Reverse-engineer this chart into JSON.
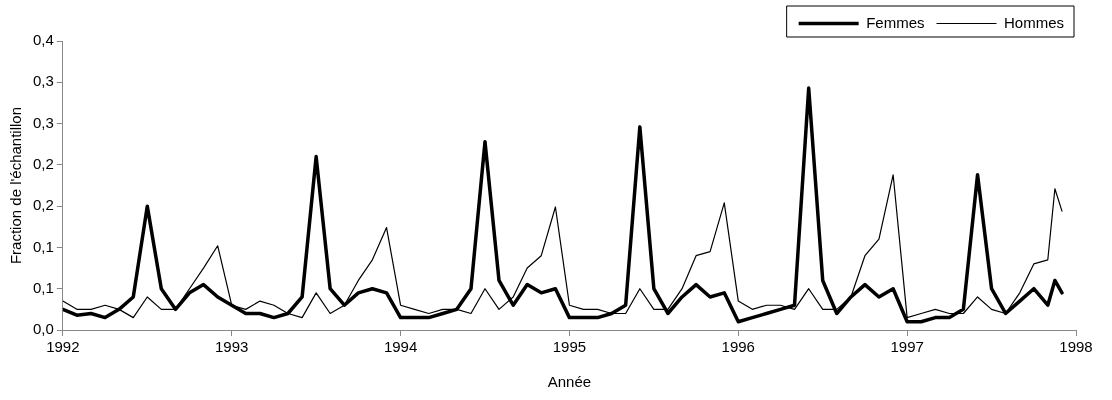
{
  "chart_data": {
    "type": "line",
    "xlabel": "Année",
    "ylabel": "Fraction de l'échantillon",
    "x": [
      1992,
      1992.083,
      1992.167,
      1992.25,
      1992.333,
      1992.417,
      1992.5,
      1992.583,
      1992.667,
      1992.75,
      1992.833,
      1992.917,
      1993,
      1993.083,
      1993.167,
      1993.25,
      1993.333,
      1993.417,
      1993.5,
      1993.583,
      1993.667,
      1993.75,
      1993.833,
      1993.917,
      1994,
      1994.083,
      1994.167,
      1994.25,
      1994.333,
      1994.417,
      1994.5,
      1994.583,
      1994.667,
      1994.75,
      1994.833,
      1994.917,
      1995,
      1995.083,
      1995.167,
      1995.25,
      1995.333,
      1995.417,
      1995.5,
      1995.583,
      1995.667,
      1995.75,
      1995.833,
      1995.917,
      1996,
      1996.083,
      1996.167,
      1996.25,
      1996.333,
      1996.417,
      1996.5,
      1996.583,
      1996.667,
      1996.75,
      1996.833,
      1996.917,
      1997,
      1997.083,
      1997.167,
      1997.25,
      1997.333,
      1997.417,
      1997.5,
      1997.583,
      1997.667,
      1997.75,
      1997.833,
      1997.875,
      1997.917
    ],
    "series": [
      {
        "name": "Femmes",
        "color": "#000000",
        "values": [
          0.025,
          0.018,
          0.02,
          0.015,
          0.025,
          0.04,
          0.15,
          0.05,
          0.025,
          0.045,
          0.055,
          0.04,
          0.03,
          0.02,
          0.02,
          0.015,
          0.02,
          0.04,
          0.21,
          0.05,
          0.03,
          0.045,
          0.05,
          0.045,
          0.015,
          0.015,
          0.015,
          0.02,
          0.025,
          0.05,
          0.228,
          0.06,
          0.03,
          0.055,
          0.045,
          0.05,
          0.015,
          0.015,
          0.015,
          0.02,
          0.03,
          0.246,
          0.05,
          0.02,
          0.04,
          0.055,
          0.04,
          0.045,
          0.01,
          0.015,
          0.02,
          0.025,
          0.03,
          0.293,
          0.06,
          0.02,
          0.04,
          0.055,
          0.04,
          0.05,
          0.01,
          0.01,
          0.015,
          0.015,
          0.025,
          0.188,
          0.05,
          0.02,
          0.035,
          0.05,
          0.03,
          0.06,
          0.045
        ]
      },
      {
        "name": "Hommes",
        "color": "#000000",
        "values": [
          0.035,
          0.025,
          0.025,
          0.03,
          0.025,
          0.015,
          0.04,
          0.025,
          0.025,
          0.05,
          0.075,
          0.102,
          0.03,
          0.025,
          0.035,
          0.03,
          0.02,
          0.015,
          0.045,
          0.02,
          0.03,
          0.06,
          0.085,
          0.124,
          0.03,
          0.025,
          0.02,
          0.025,
          0.025,
          0.02,
          0.05,
          0.025,
          0.04,
          0.075,
          0.09,
          0.149,
          0.03,
          0.025,
          0.025,
          0.02,
          0.02,
          0.05,
          0.025,
          0.025,
          0.05,
          0.09,
          0.095,
          0.154,
          0.035,
          0.025,
          0.03,
          0.03,
          0.025,
          0.05,
          0.025,
          0.025,
          0.04,
          0.09,
          0.11,
          0.188,
          0.015,
          0.02,
          0.025,
          0.02,
          0.02,
          0.04,
          0.025,
          0.02,
          0.045,
          0.08,
          0.085,
          0.171,
          0.144
        ]
      }
    ],
    "xlim": [
      1992,
      1998
    ],
    "xticks": [
      1992,
      1993,
      1994,
      1995,
      1996,
      1997,
      1998
    ],
    "ylim": [
      0,
      0.35
    ],
    "yticks": [
      {
        "value": 0,
        "label": "0,0"
      },
      {
        "value": 0.05,
        "label": "0,1"
      },
      {
        "value": 0.1,
        "label": "0,1"
      },
      {
        "value": 0.15,
        "label": "0,2"
      },
      {
        "value": 0.2,
        "label": "0,2"
      },
      {
        "value": 0.25,
        "label": "0,3"
      },
      {
        "value": 0.3,
        "label": "0,3"
      },
      {
        "value": 0.35,
        "label": "0,4"
      }
    ],
    "grid": false,
    "legend": "top right",
    "marker": "none",
    "line_style": "solid"
  }
}
